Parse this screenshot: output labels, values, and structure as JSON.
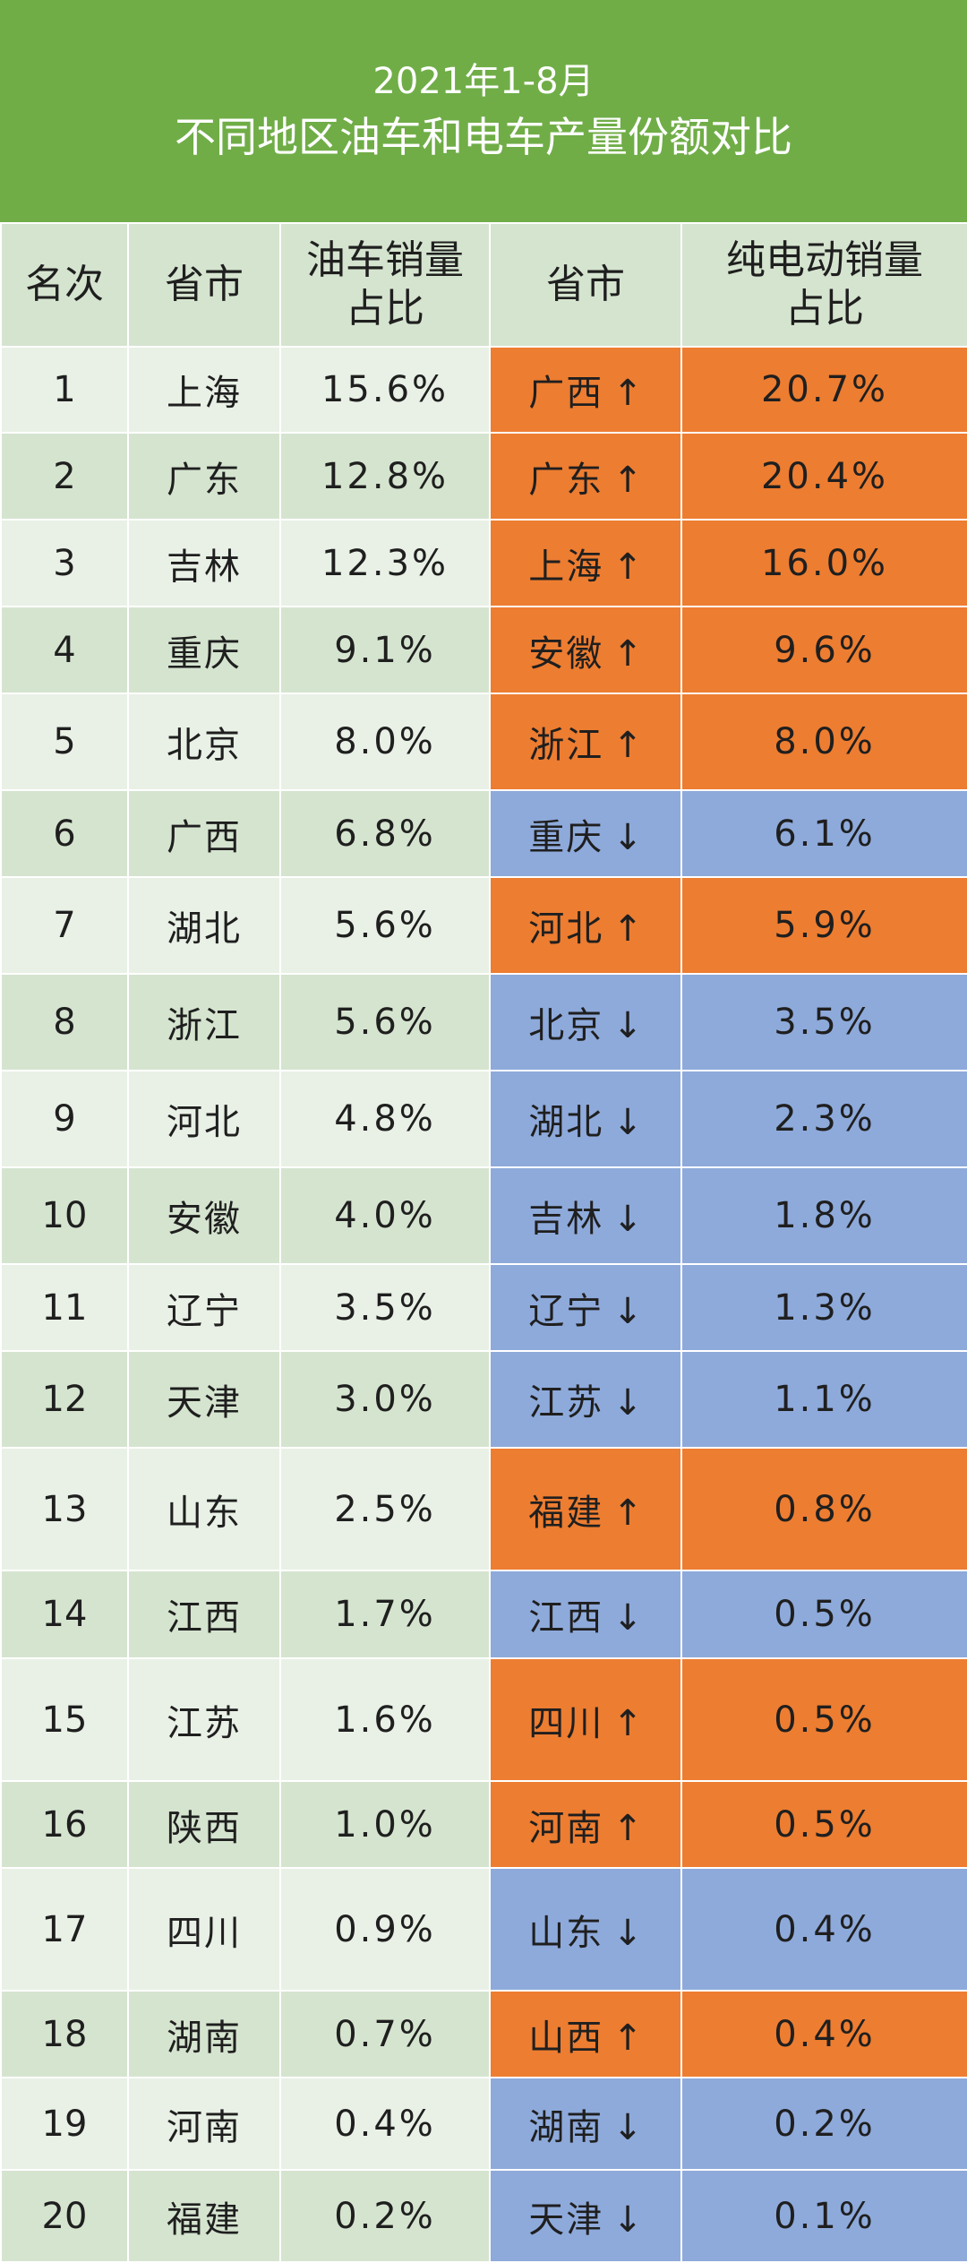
{
  "header": {
    "title_line1": "2021年1-8月",
    "title_line2": "不同地区油车和电车产量份额对比"
  },
  "columns": {
    "rank": "名次",
    "province": "省市",
    "fuel_share": "油车销量占比",
    "province2": "省市",
    "ev_share": "纯电动销量占比"
  },
  "rows": [
    {
      "rank": "1",
      "province": "上海",
      "fuel_share": "15.6%",
      "ev_province": "广西",
      "arrow": "↑",
      "ev_share": "20.7%",
      "trend": "up"
    },
    {
      "rank": "2",
      "province": "广东",
      "fuel_share": "12.8%",
      "ev_province": "广东",
      "arrow": "↑",
      "ev_share": "20.4%",
      "trend": "up"
    },
    {
      "rank": "3",
      "province": "吉林",
      "fuel_share": "12.3%",
      "ev_province": "上海",
      "arrow": "↑",
      "ev_share": "16.0%",
      "trend": "up"
    },
    {
      "rank": "4",
      "province": "重庆",
      "fuel_share": "9.1%",
      "ev_province": "安徽",
      "arrow": "↑",
      "ev_share": "9.6%",
      "trend": "up"
    },
    {
      "rank": "5",
      "province": "北京",
      "fuel_share": "8.0%",
      "ev_province": "浙江",
      "arrow": "↑",
      "ev_share": "8.0%",
      "trend": "up"
    },
    {
      "rank": "6",
      "province": "广西",
      "fuel_share": "6.8%",
      "ev_province": "重庆",
      "arrow": "↓",
      "ev_share": "6.1%",
      "trend": "down"
    },
    {
      "rank": "7",
      "province": "湖北",
      "fuel_share": "5.6%",
      "ev_province": "河北",
      "arrow": "↑",
      "ev_share": "5.9%",
      "trend": "up"
    },
    {
      "rank": "8",
      "province": "浙江",
      "fuel_share": "5.6%",
      "ev_province": "北京",
      "arrow": "↓",
      "ev_share": "3.5%",
      "trend": "down"
    },
    {
      "rank": "9",
      "province": "河北",
      "fuel_share": "4.8%",
      "ev_province": "湖北",
      "arrow": "↓",
      "ev_share": "2.3%",
      "trend": "down"
    },
    {
      "rank": "10",
      "province": "安徽",
      "fuel_share": "4.0%",
      "ev_province": "吉林",
      "arrow": "↓",
      "ev_share": "1.8%",
      "trend": "down"
    },
    {
      "rank": "11",
      "province": "辽宁",
      "fuel_share": "3.5%",
      "ev_province": "辽宁",
      "arrow": "↓",
      "ev_share": "1.3%",
      "trend": "down"
    },
    {
      "rank": "12",
      "province": "天津",
      "fuel_share": "3.0%",
      "ev_province": "江苏",
      "arrow": "↓",
      "ev_share": "1.1%",
      "trend": "down"
    },
    {
      "rank": "13",
      "province": "山东",
      "fuel_share": "2.5%",
      "ev_province": "福建",
      "arrow": "↑",
      "ev_share": "0.8%",
      "trend": "up"
    },
    {
      "rank": "14",
      "province": "江西",
      "fuel_share": "1.7%",
      "ev_province": "江西",
      "arrow": "↓",
      "ev_share": "0.5%",
      "trend": "down"
    },
    {
      "rank": "15",
      "province": "江苏",
      "fuel_share": "1.6%",
      "ev_province": "四川",
      "arrow": "↑",
      "ev_share": "0.5%",
      "trend": "up"
    },
    {
      "rank": "16",
      "province": "陕西",
      "fuel_share": "1.0%",
      "ev_province": "河南",
      "arrow": "↑",
      "ev_share": "0.5%",
      "trend": "up"
    },
    {
      "rank": "17",
      "province": "四川",
      "fuel_share": "0.9%",
      "ev_province": "山东",
      "arrow": "↓",
      "ev_share": "0.4%",
      "trend": "down"
    },
    {
      "rank": "18",
      "province": "湖南",
      "fuel_share": "0.7%",
      "ev_province": "山西",
      "arrow": "↑",
      "ev_share": "0.4%",
      "trend": "up"
    },
    {
      "rank": "19",
      "province": "河南",
      "fuel_share": "0.4%",
      "ev_province": "湖南",
      "arrow": "↓",
      "ev_share": "0.2%",
      "trend": "down"
    },
    {
      "rank": "20",
      "province": "福建",
      "fuel_share": "0.2%",
      "ev_province": "天津",
      "arrow": "↓",
      "ev_share": "0.1%",
      "trend": "down"
    }
  ],
  "colors": {
    "header_bg": "#70ad47",
    "up": "#ed7d31",
    "down": "#8eaadb",
    "row_light": "#e9f1e6",
    "row_dark": "#d5e4cf"
  }
}
